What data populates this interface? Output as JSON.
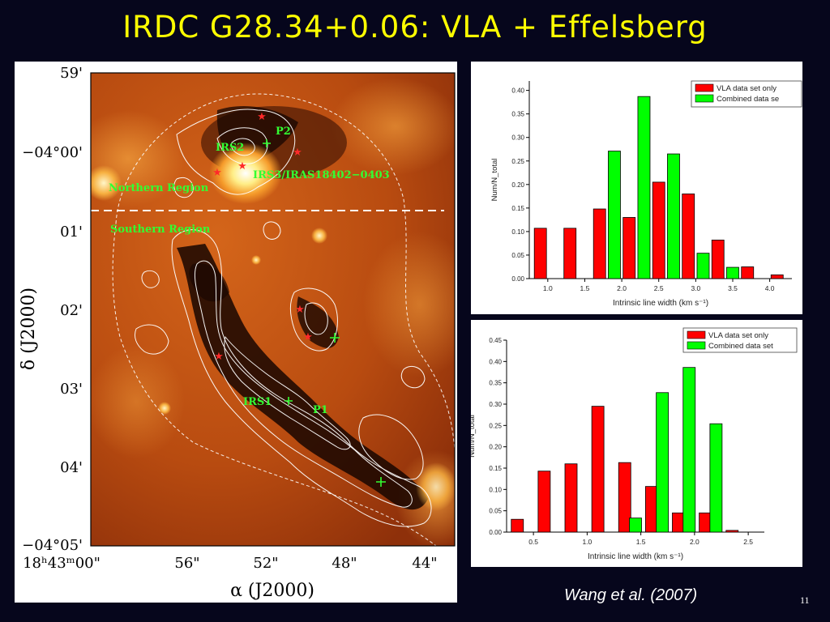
{
  "title": "IRDC G28.34+0.06: VLA + Effelsberg",
  "credit": "Wang et al. (2007)",
  "page_number": "11",
  "map": {
    "y_ticks": [
      "59'",
      "−04°00'",
      "01'",
      "02'",
      "03'",
      "04'",
      "−04°05'"
    ],
    "x_ticks": [
      "18ʰ43ᵐ00\"",
      "56\"",
      "52\"",
      "48\"",
      "44\""
    ],
    "ylabel": "δ (J2000)",
    "xlabel": "α (J2000)",
    "annotations": {
      "p2": "P2",
      "irs2": "IRS2",
      "irs3": "IRS3/IRAS18402−0403",
      "northern": "Northern Region",
      "southern": "Southern Region",
      "irs1": "IRS1",
      "p1": "P1"
    },
    "colors": {
      "background_map": "#c65a16",
      "contours": "#ffffff",
      "labels": "#33ff33",
      "stars": "#ff2a2a"
    }
  },
  "chart_data": [
    {
      "type": "bar",
      "ylabel": "Num/N_total",
      "xlabel": "Intrinsic line width (km s⁻¹)",
      "xlim": [
        0.75,
        4.3
      ],
      "ylim": [
        0,
        0.42
      ],
      "x_ticks": [
        "1.0",
        "1.5",
        "2.0",
        "2.5",
        "3.0",
        "3.5",
        "4.0"
      ],
      "y_ticks": [
        "0.00",
        "0.05",
        "0.10",
        "0.15",
        "0.20",
        "0.25",
        "0.30",
        "0.35",
        "0.40"
      ],
      "legend": [
        "VLA data set only",
        "Combined data se"
      ],
      "legend_position": "top-right",
      "series": [
        {
          "name": "VLA data set only",
          "color": "#ff0000",
          "x": [
            0.9,
            1.3,
            1.7,
            2.1,
            2.5,
            2.9,
            3.3,
            3.7,
            4.1
          ],
          "values": [
            0.107,
            0.107,
            0.148,
            0.13,
            0.205,
            0.18,
            0.082,
            0.025,
            0.008
          ]
        },
        {
          "name": "Combined data se",
          "color": "#00ff00",
          "x": [
            1.9,
            2.3,
            2.7,
            3.1,
            3.5
          ],
          "values": [
            0.271,
            0.387,
            0.265,
            0.054,
            0.024
          ]
        }
      ]
    },
    {
      "type": "bar",
      "ylabel": "Num/N_total",
      "xlabel": "Intrinsic line width (km s⁻¹)",
      "xlim": [
        0.25,
        2.65
      ],
      "ylim": [
        0,
        0.45
      ],
      "x_ticks": [
        "0.5",
        "1.0",
        "1.5",
        "2.0",
        "2.5"
      ],
      "y_ticks": [
        "0.00",
        "0.05",
        "0.10",
        "0.15",
        "0.20",
        "0.25",
        "0.30",
        "0.35",
        "0.40",
        "0.45"
      ],
      "legend": [
        "VLA data set only",
        "Combined data set"
      ],
      "legend_position": "top-right",
      "series": [
        {
          "name": "VLA data set only",
          "color": "#ff0000",
          "x": [
            0.35,
            0.6,
            0.85,
            1.1,
            1.35,
            1.6,
            1.85,
            2.1,
            2.35
          ],
          "values": [
            0.03,
            0.143,
            0.16,
            0.295,
            0.163,
            0.107,
            0.045,
            0.045,
            0.004
          ]
        },
        {
          "name": "Combined data set",
          "color": "#00ff00",
          "x": [
            1.45,
            1.7,
            1.95,
            2.2
          ],
          "values": [
            0.033,
            0.327,
            0.386,
            0.254
          ]
        }
      ]
    }
  ]
}
